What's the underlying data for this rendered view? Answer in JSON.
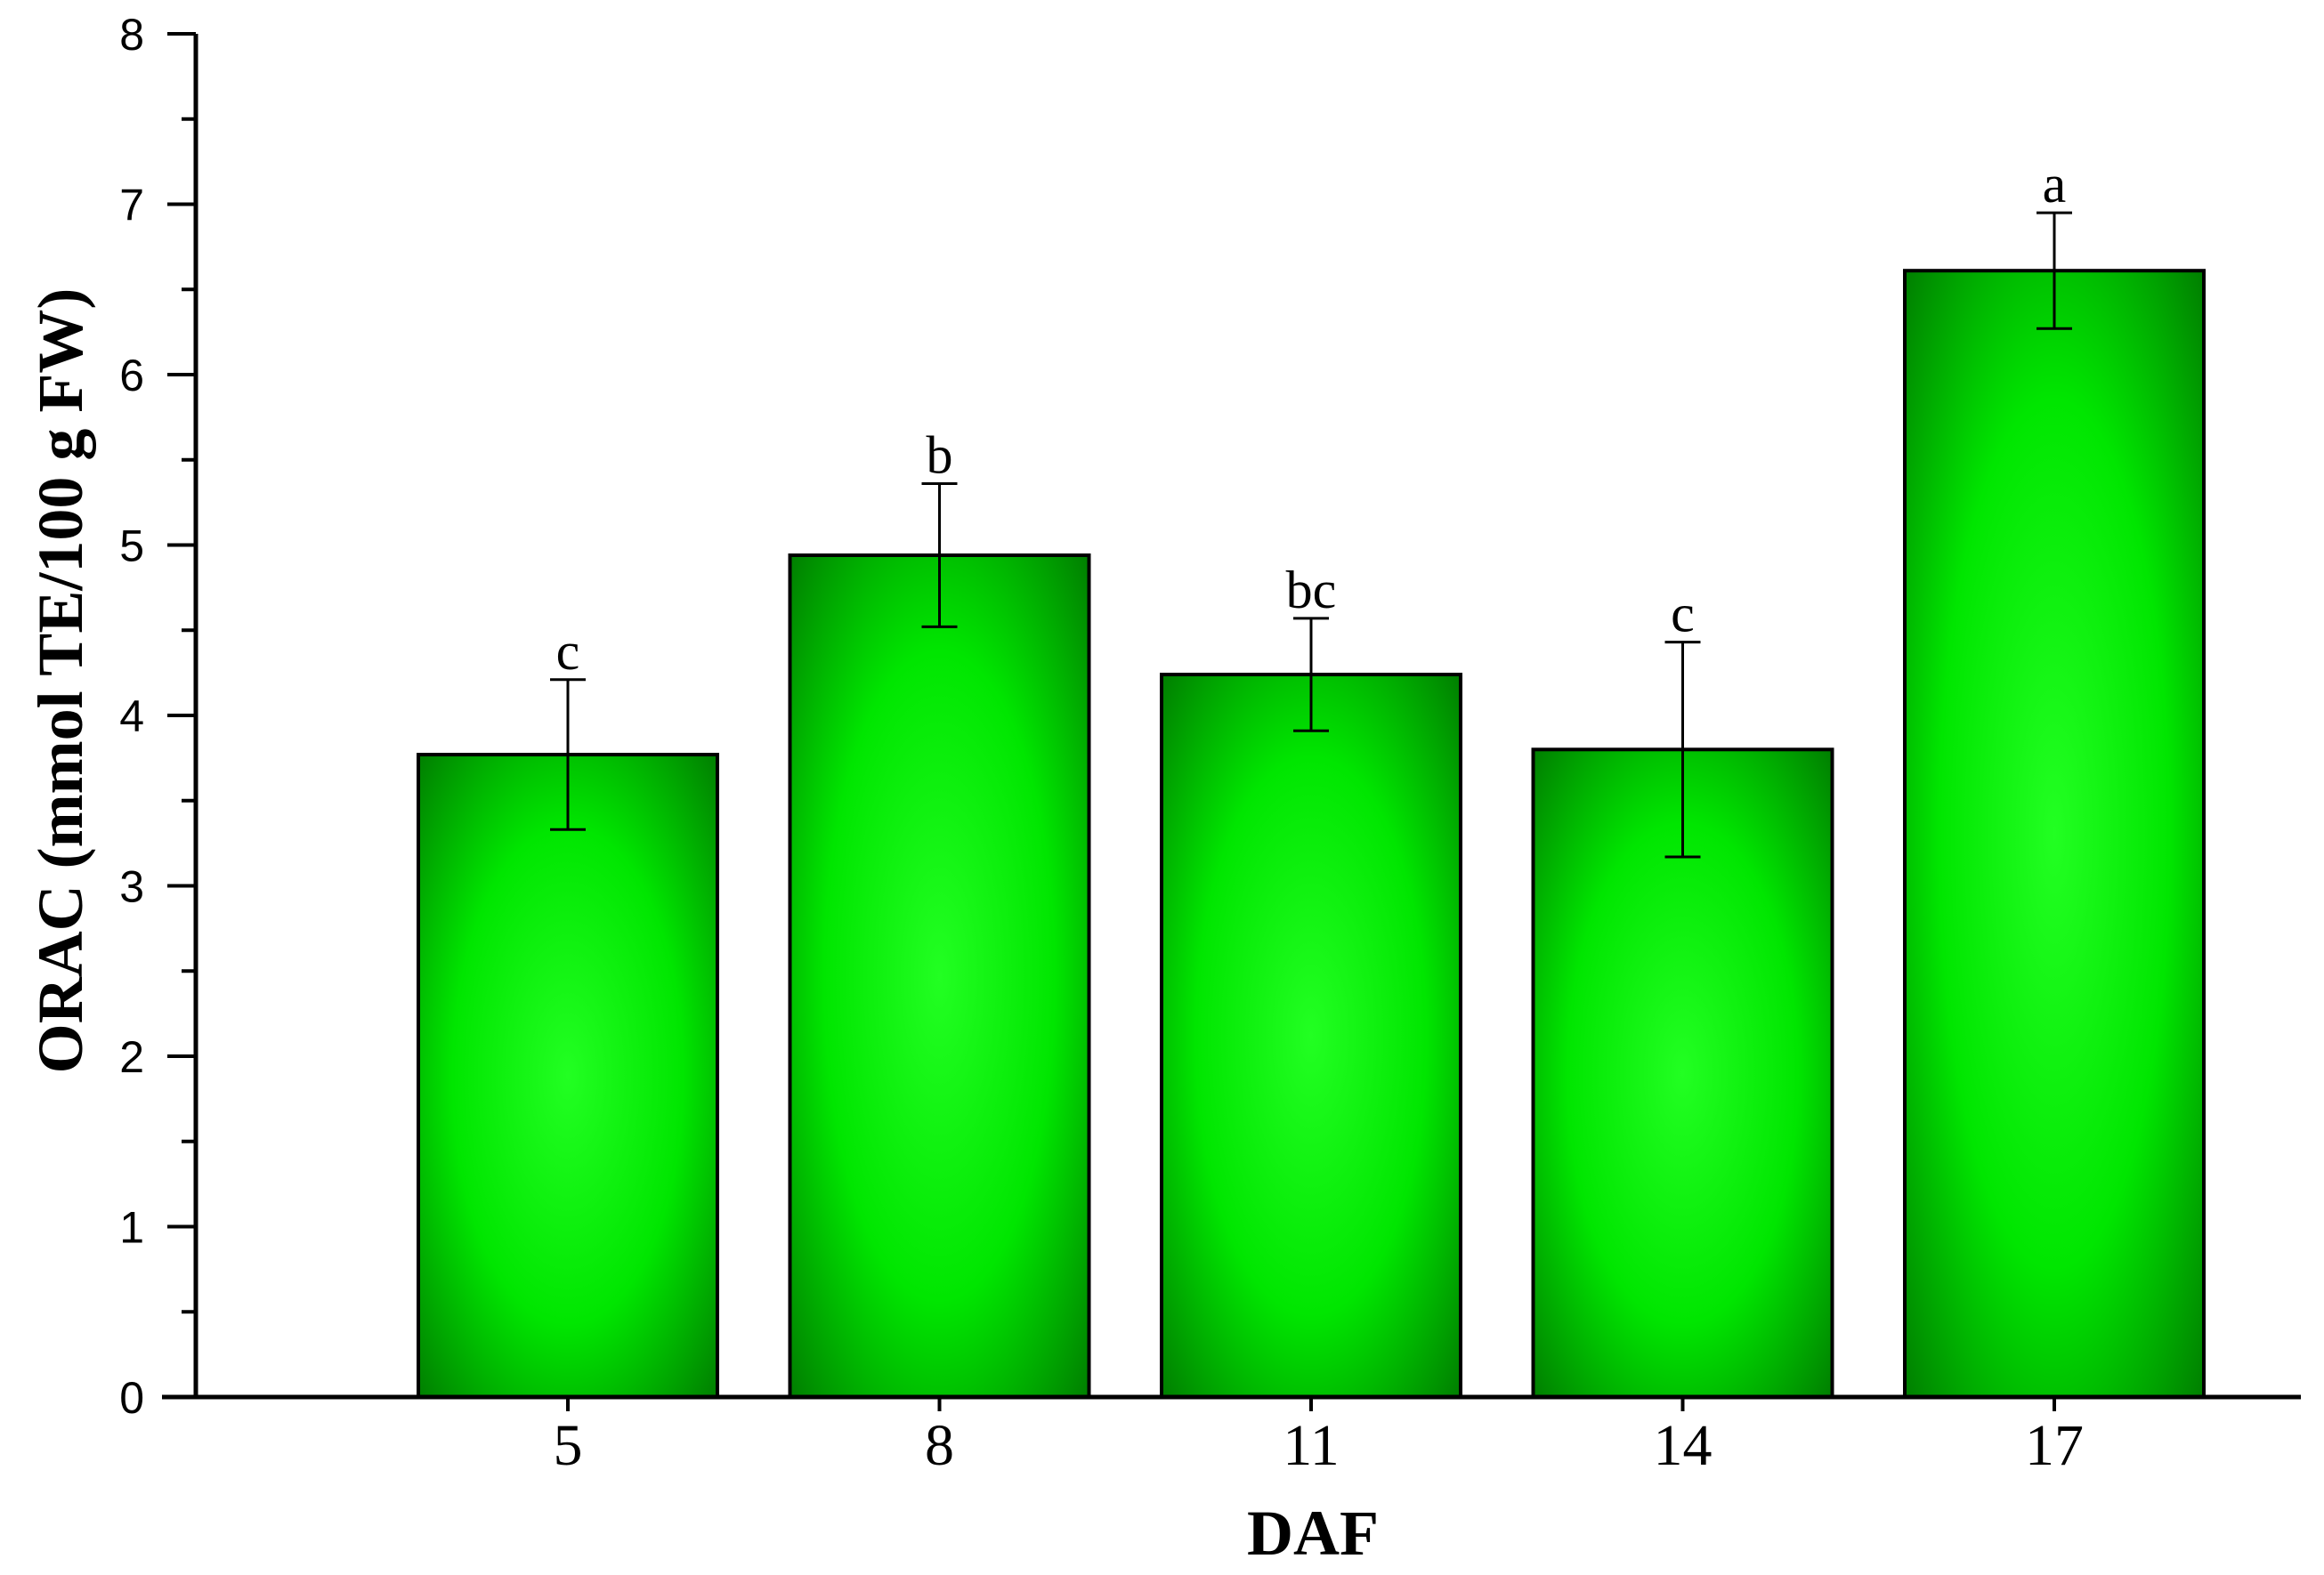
{
  "chart_data": {
    "type": "bar",
    "categories": [
      "5",
      "8",
      "11",
      "14",
      "17"
    ],
    "values": [
      3.77,
      4.94,
      4.24,
      3.8,
      6.61
    ],
    "errors": [
      0.44,
      0.42,
      0.33,
      0.63,
      0.34
    ],
    "significance_labels": [
      "c",
      "b",
      "bc",
      "c",
      "a"
    ],
    "xlabel": "DAF",
    "ylabel": "ORAC (mmol TE/100 g FW)",
    "ylim": [
      0,
      8
    ],
    "yticks": [
      "0",
      "1",
      "2",
      "3",
      "4",
      "5",
      "6",
      "7",
      "8"
    ],
    "grid": false,
    "legend": "none",
    "bar_color": "#00e600",
    "bar_edge_color": "#008000",
    "bar_highlight_color": "#22ff22"
  }
}
